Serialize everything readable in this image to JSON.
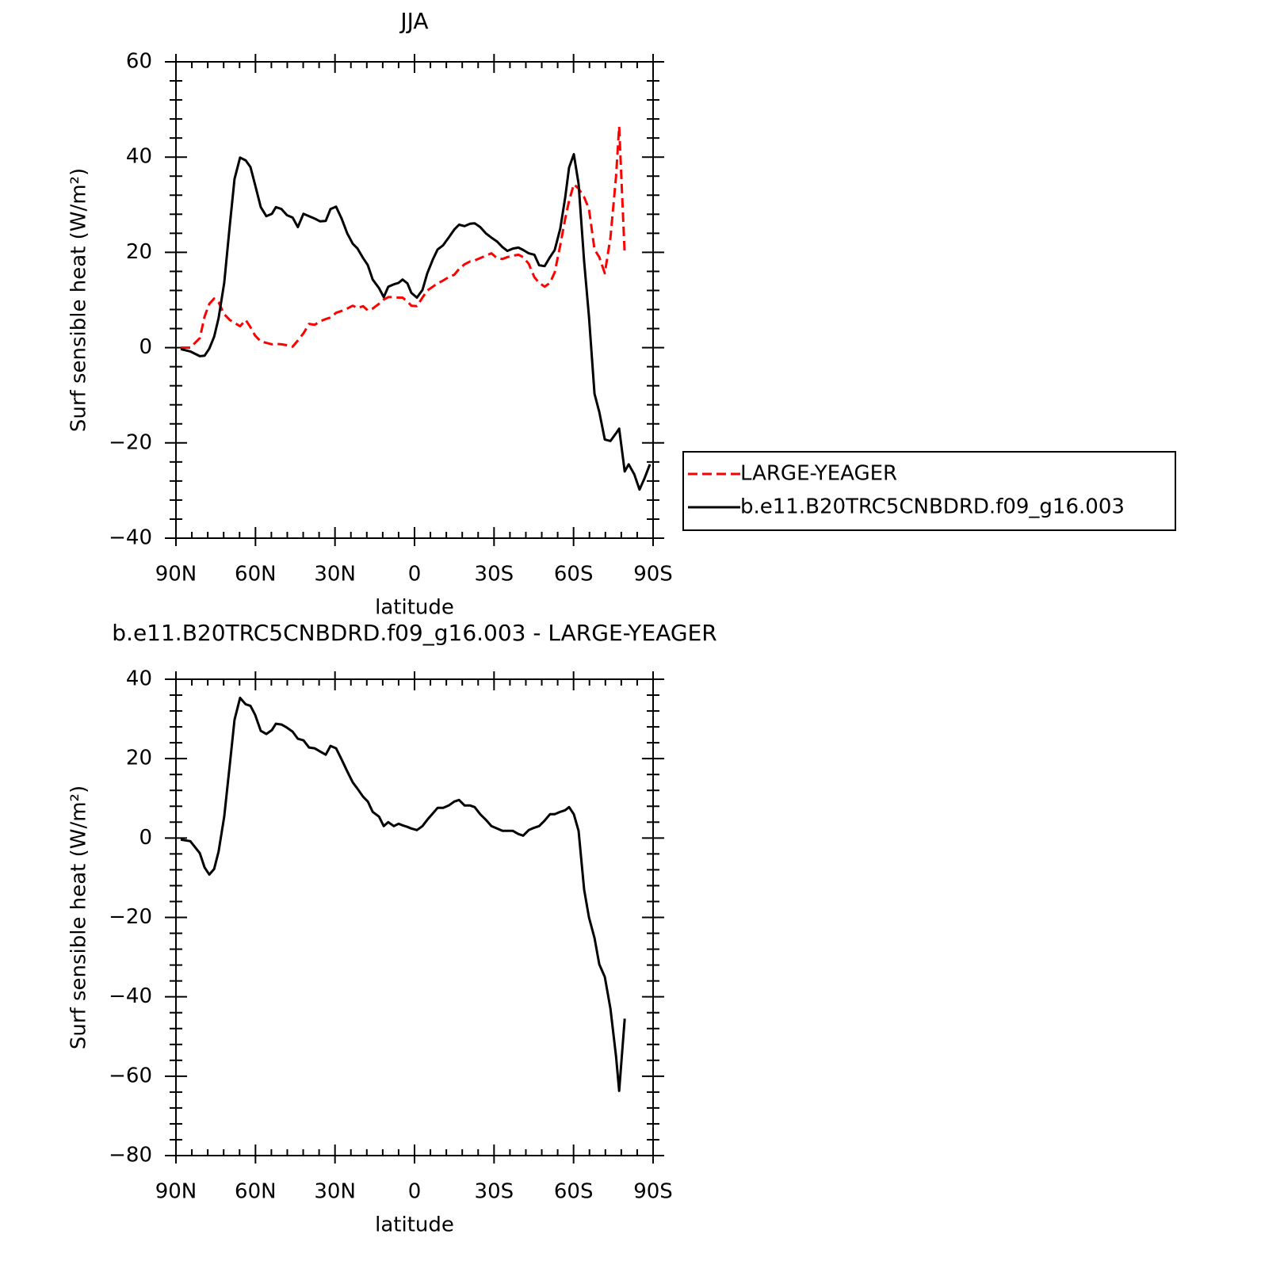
{
  "chart_data": [
    {
      "type": "line",
      "title": "JJA",
      "x_label": "latitude",
      "y_label": "Surf sensible heat (W/m²)",
      "xlim": [
        90,
        -90
      ],
      "ylim": [
        60,
        -40
      ],
      "xticks": [
        {
          "value": 90,
          "label": "90N"
        },
        {
          "value": 60,
          "label": "60N"
        },
        {
          "value": 30,
          "label": "30N"
        },
        0,
        {
          "value": -30,
          "label": "30S"
        },
        {
          "value": -60,
          "label": "60S"
        },
        {
          "value": -90,
          "label": "90S"
        }
      ],
      "yticks": [
        {
          "value": -40,
          "label": "−40"
        },
        {
          "value": -20,
          "label": "−20"
        },
        0,
        20,
        40,
        60
      ],
      "legend": "right",
      "x": [
        88.2,
        84.6,
        81.0,
        79.2,
        77.4,
        75.6,
        73.9,
        71.8,
        69.7,
        67.9,
        65.8,
        63.7,
        61.9,
        60.1,
        58.0,
        55.9,
        53.8,
        52.3,
        50.2,
        48.1,
        46.0,
        44.0,
        41.9,
        39.8,
        37.7,
        35.6,
        33.5,
        31.7,
        29.6,
        27.5,
        25.4,
        23.3,
        21.5,
        19.4,
        17.6,
        15.8,
        13.4,
        11.6,
        9.9,
        7.8,
        6.0,
        4.5,
        2.7,
        1.2,
        -0.9,
        -3.0,
        -4.8,
        -6.9,
        -8.7,
        -10.8,
        -12.9,
        -15.0,
        -16.8,
        -18.9,
        -21.0,
        -22.7,
        -24.8,
        -26.9,
        -29.0,
        -31.1,
        -33.2,
        -35.0,
        -37.1,
        -39.2,
        -41.0,
        -43.1,
        -45.2,
        -47.0,
        -49.1,
        -51.1,
        -52.9,
        -55.0,
        -56.8,
        -58.3,
        -60.1,
        -61.9,
        -64.0,
        -65.8,
        -67.9,
        -69.7,
        -71.8,
        -73.9,
        -76.0,
        -77.2,
        -79.3,
        -80.8,
        -82.9,
        -84.9,
        -86.7,
        -88.8
      ],
      "series": [
        {
          "name": "LARGE-YEAGER",
          "color": "#ff0000",
          "style": "dashed",
          "values": [
            0.0,
            0.0,
            2.0,
            6.5,
            9.2,
            10.3,
            9.5,
            7.0,
            5.8,
            5.2,
            4.5,
            5.8,
            4.3,
            2.5,
            1.3,
            1.0,
            0.7,
            0.8,
            0.7,
            0.5,
            0.2,
            1.5,
            3.0,
            5.0,
            4.8,
            5.5,
            6.0,
            6.3,
            7.3,
            7.7,
            8.2,
            8.8,
            8.3,
            8.7,
            7.8,
            8.2,
            9.2,
            10.1,
            10.6,
            10.6,
            10.5,
            10.5,
            9.7,
            8.8,
            8.7,
            10.5,
            12.0,
            12.8,
            13.5,
            14.1,
            14.8,
            15.3,
            16.5,
            17.5,
            18.1,
            18.3,
            18.8,
            19.3,
            19.8,
            18.8,
            18.6,
            19.0,
            19.3,
            19.5,
            19.0,
            17.6,
            14.8,
            13.6,
            12.8,
            13.6,
            15.8,
            21.5,
            27.0,
            30.8,
            34.3,
            33.4,
            31.6,
            29.1,
            20.6,
            19.0,
            15.6,
            23.1,
            35.8,
            46.4,
            19.5,
            null,
            null,
            null,
            null,
            null
          ]
        },
        {
          "name": "b.e11.B20TRC5CNBDRD.f09_g16.003",
          "color": "#000000",
          "style": "solid",
          "values": [
            -0.3,
            -0.8,
            -1.8,
            -1.7,
            -0.2,
            2.3,
            6.2,
            13.6,
            25.6,
            35.4,
            39.9,
            39.3,
            37.9,
            34.1,
            29.5,
            27.6,
            28.1,
            29.5,
            29.1,
            27.8,
            27.3,
            25.3,
            28.1,
            27.6,
            27.1,
            26.5,
            26.6,
            29.1,
            29.6,
            27.1,
            24.0,
            21.8,
            20.8,
            18.8,
            17.3,
            14.3,
            12.5,
            10.6,
            12.8,
            13.3,
            13.6,
            14.3,
            13.5,
            11.5,
            10.5,
            12.1,
            15.6,
            18.5,
            20.6,
            21.5,
            23.1,
            24.8,
            25.8,
            25.5,
            26.0,
            26.1,
            25.3,
            24.0,
            23.1,
            22.3,
            21.1,
            20.3,
            20.8,
            21.0,
            20.5,
            19.8,
            19.5,
            17.3,
            17.1,
            19.0,
            20.5,
            25.0,
            31.4,
            37.8,
            40.6,
            34.4,
            18.1,
            6.5,
            -9.7,
            -13.5,
            -19.3,
            -19.6,
            -18.0,
            -17.0,
            -26.0,
            -24.5,
            -26.6,
            -29.8,
            -27.5,
            -24.5
          ]
        }
      ]
    },
    {
      "type": "line",
      "title": "b.e11.B20TRC5CNBDRD.f09_g16.003 - LARGE-YEAGER",
      "x_label": "latitude",
      "y_label": "Surf sensible heat (W/m²)",
      "xlim": [
        90,
        -90
      ],
      "ylim": [
        40,
        -80
      ],
      "xticks": [
        {
          "value": 90,
          "label": "90N"
        },
        {
          "value": 60,
          "label": "60N"
        },
        {
          "value": 30,
          "label": "30N"
        },
        0,
        {
          "value": -30,
          "label": "30S"
        },
        {
          "value": -60,
          "label": "60S"
        },
        {
          "value": -90,
          "label": "90S"
        }
      ],
      "yticks": [
        {
          "value": -80,
          "label": "−80"
        },
        {
          "value": -60,
          "label": "−60"
        },
        {
          "value": -40,
          "label": "−40"
        },
        {
          "value": -20,
          "label": "−20"
        },
        0,
        20,
        40
      ],
      "x": [
        88.2,
        84.6,
        81.0,
        79.2,
        77.4,
        75.6,
        73.9,
        71.8,
        69.7,
        67.9,
        65.8,
        63.7,
        61.9,
        60.1,
        58.0,
        55.9,
        53.8,
        52.3,
        50.2,
        48.1,
        46.0,
        44.0,
        41.9,
        39.8,
        37.7,
        35.6,
        33.5,
        31.7,
        29.6,
        27.5,
        25.4,
        23.3,
        21.5,
        19.4,
        17.6,
        15.8,
        13.4,
        11.6,
        9.9,
        7.8,
        6.0,
        4.5,
        2.7,
        1.2,
        -0.9,
        -3.0,
        -4.8,
        -6.9,
        -8.7,
        -10.8,
        -12.9,
        -15.0,
        -16.8,
        -18.9,
        -21.0,
        -22.7,
        -24.8,
        -26.9,
        -29.0,
        -31.1,
        -33.2,
        -35.0,
        -37.1,
        -39.2,
        -41.0,
        -43.1,
        -45.2,
        -47.0,
        -49.1,
        -51.1,
        -52.9,
        -55.0,
        -56.8,
        -58.3,
        -60.1,
        -61.9,
        -64.0,
        -65.8,
        -67.9,
        -69.7,
        -71.8,
        -73.9,
        -76.0,
        -77.2,
        -79.3,
        -80.8,
        -82.9,
        -84.9,
        -86.7,
        -88.8
      ],
      "series": [
        {
          "color": "#000000",
          "style": "solid",
          "values": [
            -0.4,
            -0.8,
            -3.8,
            -7.4,
            -9.2,
            -7.8,
            -3.4,
            5.4,
            18.4,
            29.8,
            35.3,
            33.7,
            33.3,
            31.0,
            27.0,
            26.2,
            27.2,
            28.8,
            28.6,
            27.8,
            26.8,
            25.0,
            24.6,
            22.8,
            22.6,
            21.8,
            21.0,
            23.2,
            22.6,
            19.8,
            16.8,
            14.0,
            12.4,
            10.4,
            9.2,
            6.6,
            5.4,
            3.0,
            4.0,
            3.0,
            3.6,
            3.2,
            2.8,
            2.4,
            2.0,
            3.0,
            4.6,
            6.2,
            7.6,
            7.6,
            8.2,
            9.2,
            9.6,
            8.2,
            8.2,
            7.8,
            6.0,
            4.6,
            3.0,
            2.4,
            1.8,
            1.8,
            1.8,
            1.0,
            0.6,
            2.0,
            2.6,
            3.0,
            4.4,
            6.0,
            6.0,
            6.6,
            7.0,
            7.8,
            6.0,
            1.8,
            -13.0,
            -20.0,
            -25.2,
            -31.8,
            -35.0,
            -43.0,
            -54.9,
            -63.7,
            -45.5,
            null,
            null,
            null,
            null,
            null
          ]
        }
      ]
    }
  ]
}
